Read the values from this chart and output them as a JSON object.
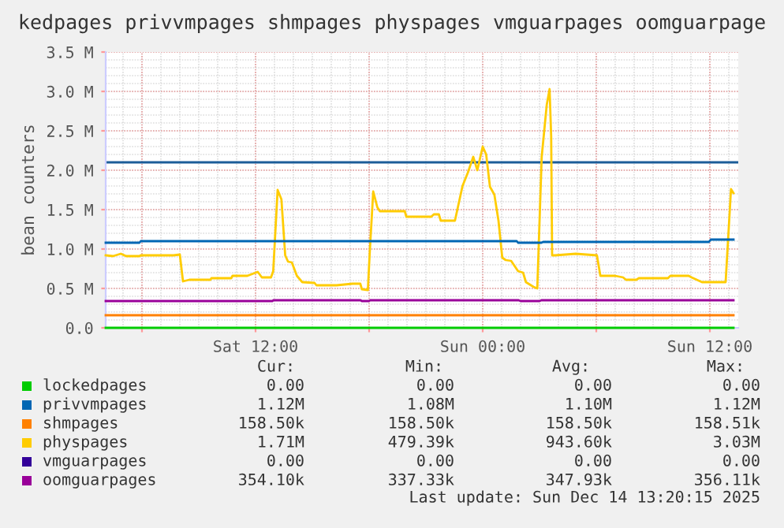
{
  "chart_data": {
    "type": "line",
    "title": "kedpages privvmpages shmpages physpages vmguarpages oomguarpage",
    "ylabel": "bean counters",
    "xlim": [
      "2025-12-13T04:05",
      "2025-12-14T13:30"
    ],
    "xticks": [
      {
        "value": "2025-12-13T06:00",
        "label": null
      },
      {
        "value": "2025-12-13T12:00",
        "label": "Sat 12:00"
      },
      {
        "value": "2025-12-13T18:00",
        "label": null
      },
      {
        "value": "2025-12-14T00:00",
        "label": "Sun 00:00"
      },
      {
        "value": "2025-12-14T06:00",
        "label": null
      },
      {
        "value": "2025-12-14T12:00",
        "label": "Sun 12:00"
      }
    ],
    "ylim": [
      0,
      3500000
    ],
    "yticks": [
      {
        "value": 0,
        "label": "0.0"
      },
      {
        "value": 500000,
        "label": "0.5 M"
      },
      {
        "value": 1000000,
        "label": "1.0 M"
      },
      {
        "value": 1500000,
        "label": "1.5 M"
      },
      {
        "value": 2000000,
        "label": "2.0 M"
      },
      {
        "value": 2500000,
        "label": "2.5 M"
      },
      {
        "value": 3000000,
        "label": "3.0 M"
      },
      {
        "value": 3500000,
        "label": "3.5 M"
      }
    ],
    "grid": true,
    "legend": "bottom",
    "ref_lines": [
      {
        "axis": "y",
        "value": 2100000,
        "label": null,
        "color": "#1c5d99"
      }
    ],
    "series": [
      {
        "name": "lockedpages",
        "color": "#00cc00",
        "x": [
          "2025-12-13T04:05",
          "2025-12-14T13:15"
        ],
        "values": [
          0,
          0
        ]
      },
      {
        "name": "privvmpages",
        "color": "#0066b3",
        "x": [
          "2025-12-13T04:05",
          "2025-12-13T05:52",
          "2025-12-13T05:56",
          "2025-12-14T01:48",
          "2025-12-14T01:52",
          "2025-12-14T03:06",
          "2025-12-14T03:12",
          "2025-12-14T11:57",
          "2025-12-14T12:03",
          "2025-12-14T13:15"
        ],
        "values": [
          1080000,
          1080000,
          1100000,
          1100000,
          1080000,
          1080000,
          1090000,
          1090000,
          1120000,
          1120000
        ]
      },
      {
        "name": "shmpages",
        "color": "#ff8000",
        "x": [
          "2025-12-13T04:05",
          "2025-12-14T13:15"
        ],
        "values": [
          160000,
          160000
        ]
      },
      {
        "name": "physpages",
        "color": "#ffcc00",
        "x": [
          "2025-12-13T04:05",
          "2025-12-13T04:28",
          "2025-12-13T04:53",
          "2025-12-13T05:10",
          "2025-12-13T05:52",
          "2025-12-13T05:56",
          "2025-12-13T07:40",
          "2025-12-13T08:00",
          "2025-12-13T08:10",
          "2025-12-13T08:30",
          "2025-12-13T09:37",
          "2025-12-13T09:40",
          "2025-12-13T10:43",
          "2025-12-13T10:47",
          "2025-12-13T11:34",
          "2025-12-13T12:07",
          "2025-12-13T12:20",
          "2025-12-13T12:49",
          "2025-12-13T12:56",
          "2025-12-13T13:10",
          "2025-12-13T13:22",
          "2025-12-13T13:34",
          "2025-12-13T13:43",
          "2025-12-13T13:55",
          "2025-12-13T14:11",
          "2025-12-13T14:28",
          "2025-12-13T15:07",
          "2025-12-13T15:13",
          "2025-12-13T16:17",
          "2025-12-13T17:07",
          "2025-12-13T17:32",
          "2025-12-13T17:37",
          "2025-12-13T17:56",
          "2025-12-13T18:02",
          "2025-12-13T18:13",
          "2025-12-13T18:26",
          "2025-12-13T18:34",
          "2025-12-13T19:53",
          "2025-12-13T19:58",
          "2025-12-13T21:17",
          "2025-12-13T21:25",
          "2025-12-13T21:41",
          "2025-12-13T21:47",
          "2025-12-13T22:32",
          "2025-12-13T22:56",
          "2025-12-13T23:13",
          "2025-12-13T23:30",
          "2025-12-13T23:43",
          "2025-12-14T00:00",
          "2025-12-14T00:11",
          "2025-12-14T00:23",
          "2025-12-14T00:37",
          "2025-12-14T00:50",
          "2025-12-14T01:02",
          "2025-12-14T01:13",
          "2025-12-14T01:30",
          "2025-12-14T01:52",
          "2025-12-14T02:08",
          "2025-12-14T02:17",
          "2025-12-14T02:41",
          "2025-12-14T02:53",
          "2025-12-14T03:07",
          "2025-12-14T03:23",
          "2025-12-14T03:32",
          "2025-12-14T03:37",
          "2025-12-14T03:40",
          "2025-12-14T03:49",
          "2025-12-14T04:55",
          "2025-12-14T06:02",
          "2025-12-14T06:13",
          "2025-12-14T07:00",
          "2025-12-14T07:25",
          "2025-12-14T07:34",
          "2025-12-14T08:07",
          "2025-12-14T08:15",
          "2025-12-14T09:47",
          "2025-12-14T09:55",
          "2025-12-14T10:53",
          "2025-12-14T11:02",
          "2025-12-14T11:35",
          "2025-12-14T12:50",
          "2025-12-14T13:07",
          "2025-12-14T13:15"
        ],
        "values": [
          920000,
          910000,
          940000,
          910000,
          910000,
          920000,
          920000,
          930000,
          590000,
          610000,
          610000,
          630000,
          630000,
          660000,
          660000,
          710000,
          640000,
          640000,
          720000,
          1750000,
          1630000,
          920000,
          840000,
          830000,
          660000,
          580000,
          570000,
          540000,
          540000,
          560000,
          560000,
          490000,
          480000,
          960000,
          1730000,
          1530000,
          1480000,
          1480000,
          1410000,
          1410000,
          1440000,
          1440000,
          1360000,
          1360000,
          1800000,
          1970000,
          2170000,
          2000000,
          2300000,
          2200000,
          1790000,
          1690000,
          1360000,
          890000,
          860000,
          850000,
          720000,
          700000,
          580000,
          520000,
          500000,
          2170000,
          2830000,
          3030000,
          2430000,
          920000,
          920000,
          940000,
          920000,
          660000,
          660000,
          640000,
          610000,
          610000,
          630000,
          630000,
          660000,
          660000,
          640000,
          580000,
          580000,
          1760000,
          1710000
        ]
      },
      {
        "name": "vmguarpages",
        "color": "#330099",
        "values": [
          null,
          null
        ]
      },
      {
        "name": "oomguarpages",
        "color": "#990099",
        "x": [
          "2025-12-13T04:05",
          "2025-12-13T12:54",
          "2025-12-13T12:56",
          "2025-12-13T17:33",
          "2025-12-13T17:37",
          "2025-12-13T18:00",
          "2025-12-13T18:03",
          "2025-12-14T01:54",
          "2025-12-14T02:00",
          "2025-12-14T03:00",
          "2025-12-14T03:06",
          "2025-12-14T13:15"
        ],
        "values": [
          340000,
          340000,
          350000,
          350000,
          340000,
          340000,
          350000,
          350000,
          340000,
          340000,
          350000,
          350000
        ]
      }
    ],
    "annotations": [
      "Cur:",
      "Min:",
      "Avg:",
      "Max:",
      "0.00",
      "0.00",
      "0.00",
      "0.00",
      "1.12M",
      "1.08M",
      "1.10M",
      "1.12M",
      "158.50k",
      "158.50k",
      "158.50k",
      "158.51k",
      "1.71M",
      "479.39k",
      "943.60k",
      "3.03M",
      "0.00",
      "0.00",
      "0.00",
      "0.00",
      "354.10k",
      "337.33k",
      "347.93k",
      "356.11k",
      "Last update: Sun Dec 14 13:20:15 2025"
    ]
  }
}
